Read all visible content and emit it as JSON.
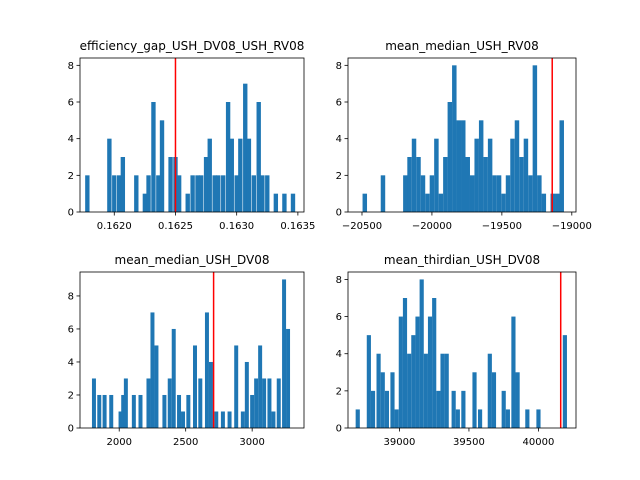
{
  "figure": {
    "bar_color": "#1f77b4",
    "ref_color": "#ff0000"
  },
  "chart_data": [
    {
      "type": "bar",
      "title": "efficiency_gap_USH_DV08_USH_RV08",
      "xlim": [
        0.16172,
        0.16355
      ],
      "ylim": [
        0,
        8.4
      ],
      "bin_width": 3.57e-05,
      "xticks": [
        0.162,
        0.1625,
        0.163,
        0.1635
      ],
      "xtick_labels": [
        "0.1620",
        "0.1625",
        "0.1630",
        "0.1635"
      ],
      "yticks": [
        0,
        2,
        4,
        6,
        8
      ],
      "ref_line": 0.1625,
      "bars": [
        [
          0.16178,
          2
        ],
        [
          0.16196,
          4
        ],
        [
          0.162,
          2
        ],
        [
          0.16204,
          2
        ],
        [
          0.16207,
          3
        ],
        [
          0.16218,
          2
        ],
        [
          0.16225,
          1
        ],
        [
          0.16228,
          2
        ],
        [
          0.16232,
          6
        ],
        [
          0.16236,
          2
        ],
        [
          0.16239,
          5
        ],
        [
          0.16246,
          3
        ],
        [
          0.1625,
          3
        ],
        [
          0.16253,
          2
        ],
        [
          0.1626,
          1
        ],
        [
          0.16264,
          2
        ],
        [
          0.16268,
          2
        ],
        [
          0.16271,
          2
        ],
        [
          0.16275,
          3
        ],
        [
          0.16278,
          4
        ],
        [
          0.16282,
          2
        ],
        [
          0.16285,
          2
        ],
        [
          0.16289,
          2
        ],
        [
          0.16293,
          6
        ],
        [
          0.16296,
          4
        ],
        [
          0.163,
          2
        ],
        [
          0.16303,
          4
        ],
        [
          0.16307,
          7
        ],
        [
          0.1631,
          4
        ],
        [
          0.16314,
          2
        ],
        [
          0.16318,
          6
        ],
        [
          0.16321,
          2
        ],
        [
          0.16325,
          2
        ],
        [
          0.16332,
          1
        ],
        [
          0.16339,
          1
        ],
        [
          0.16346,
          1
        ]
      ]
    },
    {
      "type": "bar",
      "title": "mean_median_USH_RV08",
      "xlim": [
        -20600,
        -18970
      ],
      "ylim": [
        0,
        8.4
      ],
      "bin_width": 32,
      "xticks": [
        -20500,
        -20000,
        -19500,
        -19000
      ],
      "xtick_labels": [
        "−20500",
        "−20000",
        "−19500",
        "−19000"
      ],
      "yticks": [
        0,
        2,
        4,
        6,
        8
      ],
      "ref_line": -19140,
      "bars": [
        [
          -20480,
          1
        ],
        [
          -20350,
          2
        ],
        [
          -20190,
          2
        ],
        [
          -20160,
          3
        ],
        [
          -20128,
          4
        ],
        [
          -20096,
          3
        ],
        [
          -20064,
          2
        ],
        [
          -20032,
          1
        ],
        [
          -20000,
          2
        ],
        [
          -19968,
          4
        ],
        [
          -19936,
          1
        ],
        [
          -19904,
          3
        ],
        [
          -19872,
          6
        ],
        [
          -19840,
          8
        ],
        [
          -19808,
          5
        ],
        [
          -19776,
          5
        ],
        [
          -19744,
          3
        ],
        [
          -19712,
          2
        ],
        [
          -19680,
          4
        ],
        [
          -19648,
          5
        ],
        [
          -19616,
          3
        ],
        [
          -19584,
          4
        ],
        [
          -19552,
          2
        ],
        [
          -19520,
          2
        ],
        [
          -19488,
          1
        ],
        [
          -19456,
          2
        ],
        [
          -19424,
          4
        ],
        [
          -19392,
          5
        ],
        [
          -19360,
          3
        ],
        [
          -19328,
          4
        ],
        [
          -19296,
          2
        ],
        [
          -19264,
          8
        ],
        [
          -19232,
          2
        ],
        [
          -19200,
          1
        ],
        [
          -19136,
          1
        ],
        [
          -19104,
          1
        ],
        [
          -19072,
          5
        ]
      ]
    },
    {
      "type": "bar",
      "title": "mean_median_USH_DV08",
      "xlim": [
        1705,
        3390
      ],
      "ylim": [
        0,
        9.45
      ],
      "bin_width": 30,
      "xticks": [
        2000,
        2500,
        3000
      ],
      "xtick_labels": [
        "2000",
        "2500",
        "3000"
      ],
      "yticks": [
        0,
        2,
        4,
        6,
        8
      ],
      "ref_line": 2710,
      "bars": [
        [
          1810,
          3
        ],
        [
          1850,
          2
        ],
        [
          1890,
          2
        ],
        [
          1940,
          2
        ],
        [
          2010,
          1
        ],
        [
          2030,
          2
        ],
        [
          2050,
          3
        ],
        [
          2110,
          2
        ],
        [
          2160,
          2
        ],
        [
          2220,
          3
        ],
        [
          2250,
          7
        ],
        [
          2280,
          5
        ],
        [
          2340,
          2
        ],
        [
          2380,
          3
        ],
        [
          2410,
          6
        ],
        [
          2450,
          2
        ],
        [
          2480,
          1
        ],
        [
          2520,
          2
        ],
        [
          2570,
          5
        ],
        [
          2610,
          3
        ],
        [
          2660,
          7
        ],
        [
          2690,
          4
        ],
        [
          2730,
          1
        ],
        [
          2780,
          1
        ],
        [
          2830,
          1
        ],
        [
          2880,
          5
        ],
        [
          2930,
          1
        ],
        [
          2960,
          4
        ],
        [
          3000,
          2
        ],
        [
          3030,
          3
        ],
        [
          3060,
          5
        ],
        [
          3090,
          3
        ],
        [
          3130,
          3
        ],
        [
          3160,
          1
        ],
        [
          3200,
          3
        ],
        [
          3240,
          9
        ],
        [
          3270,
          6
        ]
      ]
    },
    {
      "type": "bar",
      "title": "mean_thirdian_USH_DV08",
      "xlim": [
        38630,
        40270
      ],
      "ylim": [
        0,
        8.4
      ],
      "bin_width": 30,
      "xticks": [
        39000,
        39500,
        40000
      ],
      "xtick_labels": [
        "39000",
        "39500",
        "40000"
      ],
      "yticks": [
        0,
        2,
        4,
        6,
        8
      ],
      "ref_line": 40160,
      "bars": [
        [
          38700,
          1
        ],
        [
          38780,
          5
        ],
        [
          38810,
          2
        ],
        [
          38850,
          4
        ],
        [
          38880,
          3
        ],
        [
          38910,
          2
        ],
        [
          38950,
          3
        ],
        [
          38980,
          1
        ],
        [
          39010,
          6
        ],
        [
          39040,
          7
        ],
        [
          39070,
          4
        ],
        [
          39100,
          5
        ],
        [
          39130,
          6
        ],
        [
          39160,
          8
        ],
        [
          39190,
          4
        ],
        [
          39220,
          6
        ],
        [
          39250,
          7
        ],
        [
          39280,
          2
        ],
        [
          39310,
          4
        ],
        [
          39340,
          4
        ],
        [
          39390,
          2
        ],
        [
          39420,
          1
        ],
        [
          39460,
          2
        ],
        [
          39540,
          3
        ],
        [
          39580,
          1
        ],
        [
          39650,
          4
        ],
        [
          39680,
          3
        ],
        [
          39750,
          2
        ],
        [
          39780,
          1
        ],
        [
          39820,
          6
        ],
        [
          39850,
          3
        ],
        [
          39920,
          1
        ],
        [
          40000,
          1
        ],
        [
          40190,
          5
        ]
      ]
    }
  ]
}
